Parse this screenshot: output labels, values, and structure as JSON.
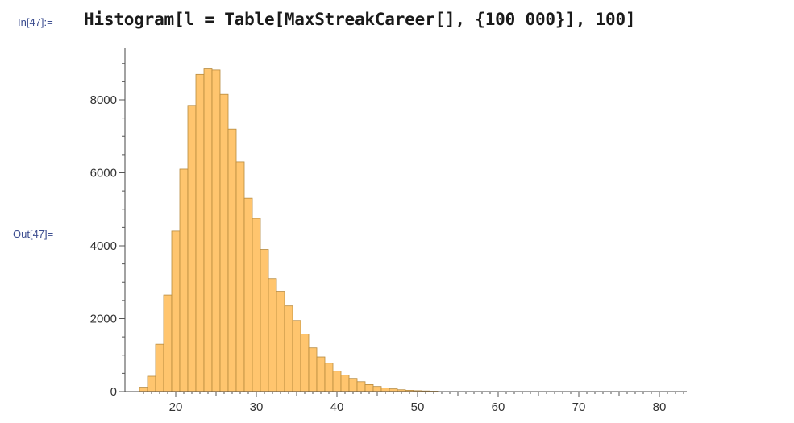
{
  "notebook": {
    "input_label": "In[47]:=",
    "output_label": "Out[47]=",
    "input_code": "Histogram[l = Table[MaxStreakCareer[], {100 000}], 100]"
  },
  "chart_data": {
    "type": "bar",
    "title": "",
    "xlabel": "",
    "ylabel": "",
    "xlim": [
      15,
      83
    ],
    "ylim": [
      0,
      9000
    ],
    "xticks": [
      20,
      30,
      40,
      50,
      60,
      70,
      80
    ],
    "yticks": [
      0,
      2000,
      4000,
      6000,
      8000
    ],
    "bar_color": "#ffc56e",
    "bar_edge_color": "#b78a3e",
    "bin_width": 1,
    "bins": [
      {
        "x": 16,
        "value": 120
      },
      {
        "x": 17,
        "value": 420
      },
      {
        "x": 18,
        "value": 1300
      },
      {
        "x": 19,
        "value": 2650
      },
      {
        "x": 20,
        "value": 4400
      },
      {
        "x": 21,
        "value": 6100
      },
      {
        "x": 22,
        "value": 7850
      },
      {
        "x": 23,
        "value": 8700
      },
      {
        "x": 24,
        "value": 8850
      },
      {
        "x": 25,
        "value": 8820
      },
      {
        "x": 26,
        "value": 8150
      },
      {
        "x": 27,
        "value": 7200
      },
      {
        "x": 28,
        "value": 6300
      },
      {
        "x": 29,
        "value": 5300
      },
      {
        "x": 30,
        "value": 4750
      },
      {
        "x": 31,
        "value": 3900
      },
      {
        "x": 32,
        "value": 3100
      },
      {
        "x": 33,
        "value": 2750
      },
      {
        "x": 34,
        "value": 2350
      },
      {
        "x": 35,
        "value": 1950
      },
      {
        "x": 36,
        "value": 1580
      },
      {
        "x": 37,
        "value": 1200
      },
      {
        "x": 38,
        "value": 950
      },
      {
        "x": 39,
        "value": 780
      },
      {
        "x": 40,
        "value": 560
      },
      {
        "x": 41,
        "value": 450
      },
      {
        "x": 42,
        "value": 360
      },
      {
        "x": 43,
        "value": 270
      },
      {
        "x": 44,
        "value": 190
      },
      {
        "x": 45,
        "value": 140
      },
      {
        "x": 46,
        "value": 100
      },
      {
        "x": 47,
        "value": 75
      },
      {
        "x": 48,
        "value": 50
      },
      {
        "x": 49,
        "value": 35
      },
      {
        "x": 50,
        "value": 25
      },
      {
        "x": 51,
        "value": 18
      },
      {
        "x": 52,
        "value": 12
      }
    ]
  }
}
